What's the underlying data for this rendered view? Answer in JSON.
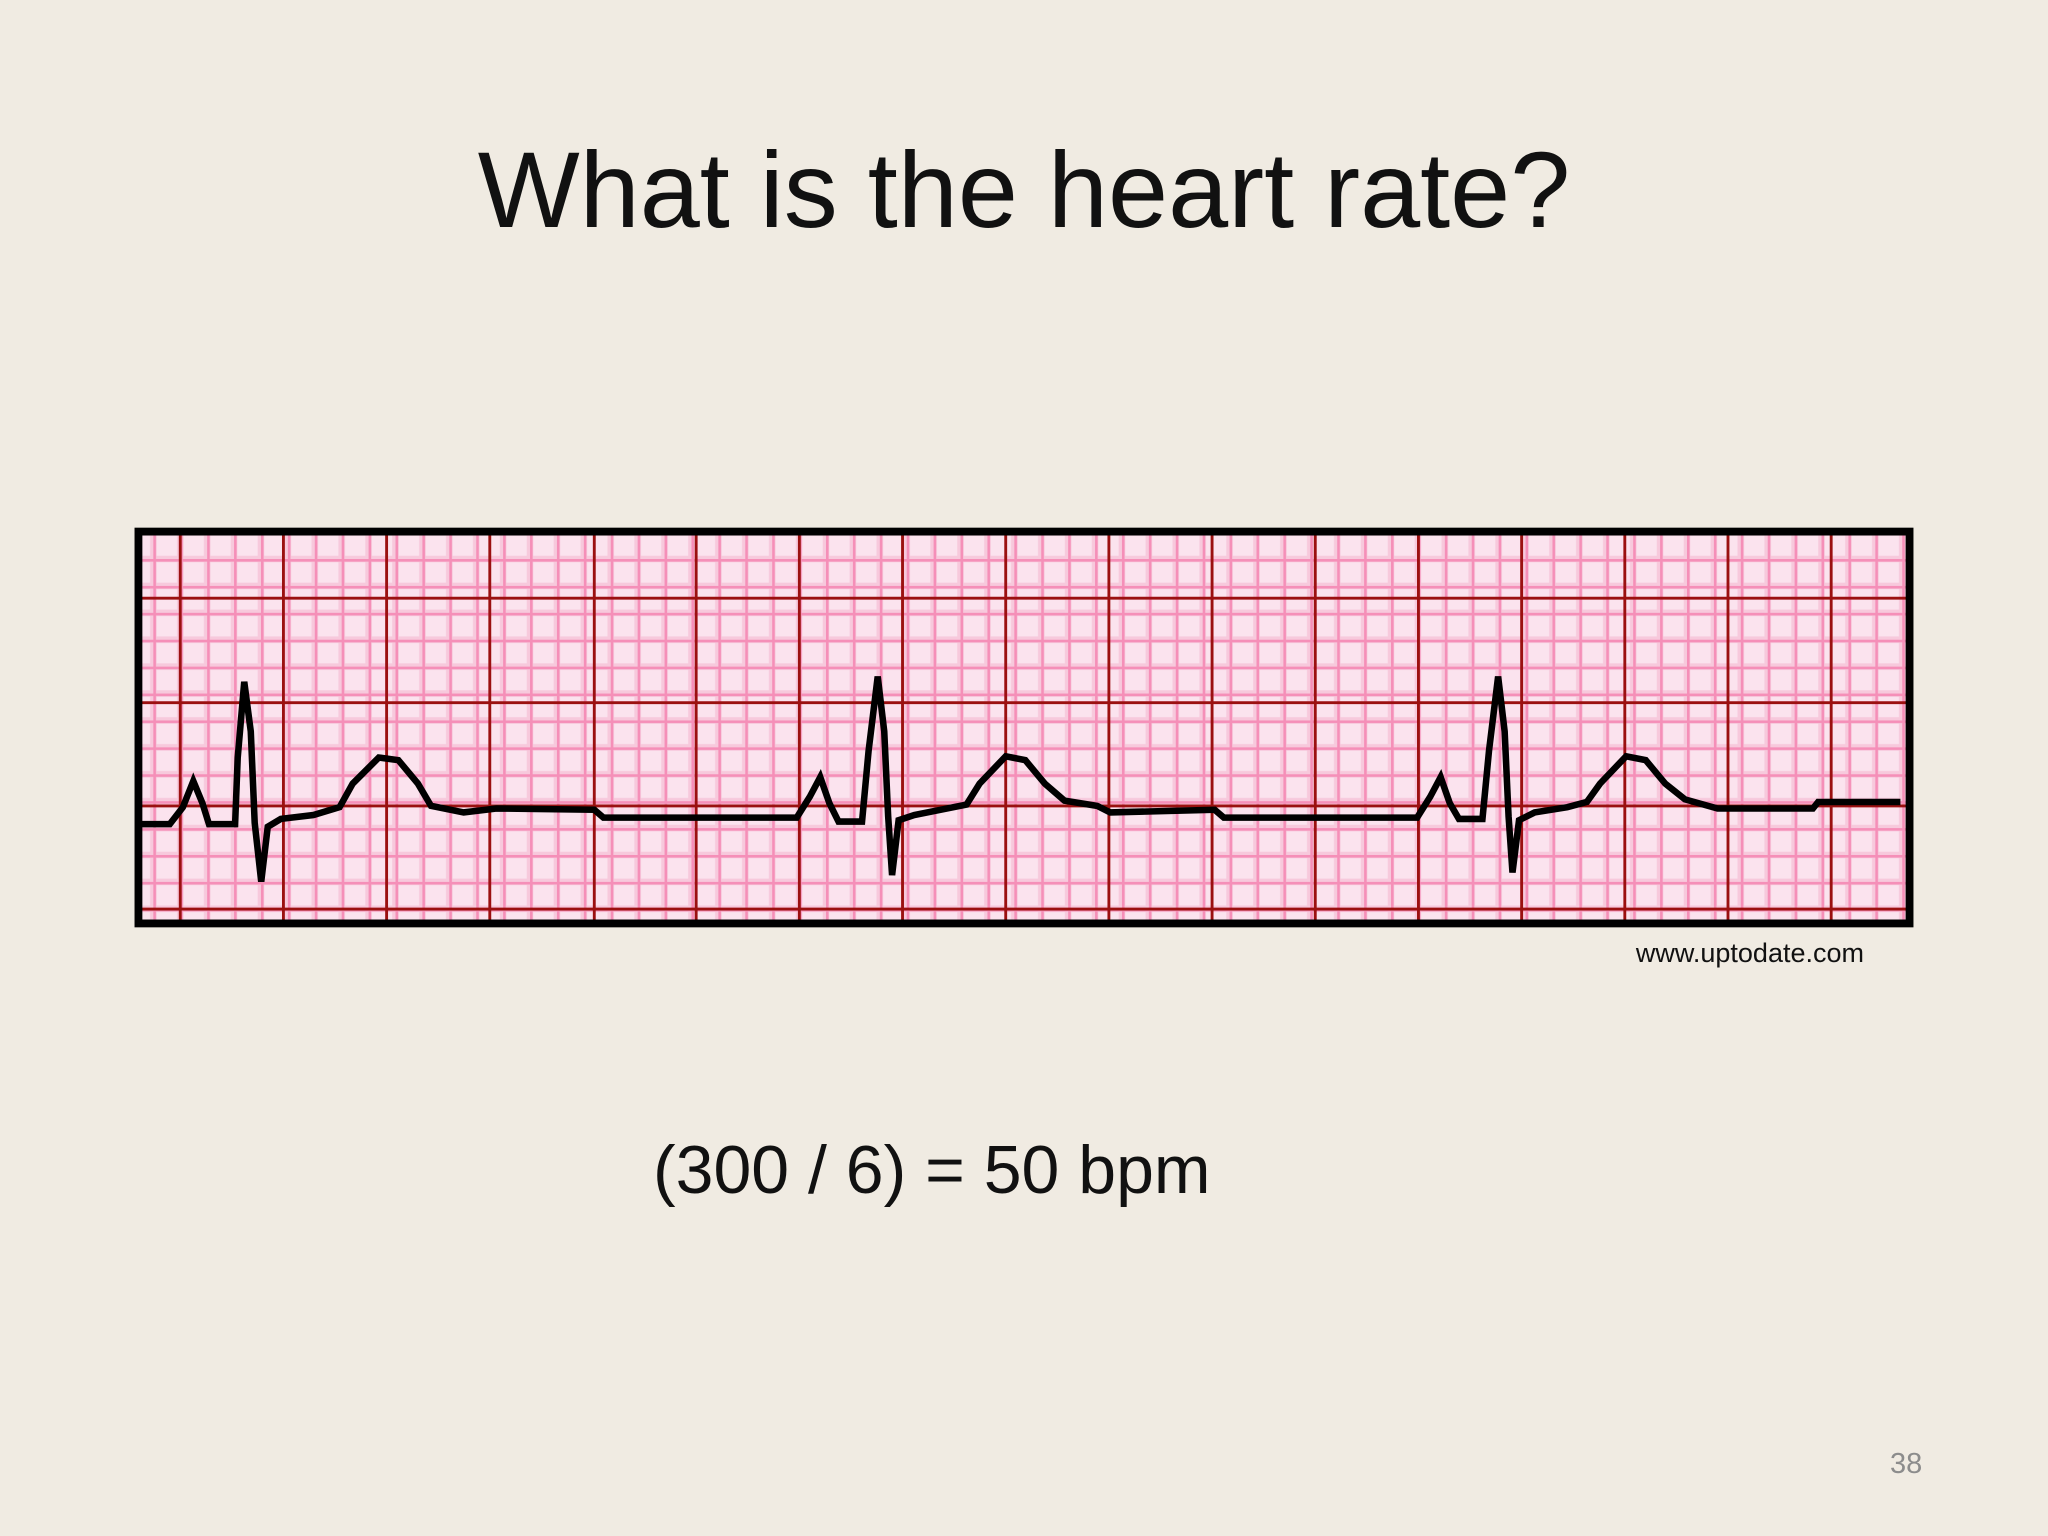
{
  "title": "What is the heart rate?",
  "figure": {
    "credit": "www.uptodate.com"
  },
  "answer": "(300 / 6) = 50 bpm",
  "page_number": "38"
}
